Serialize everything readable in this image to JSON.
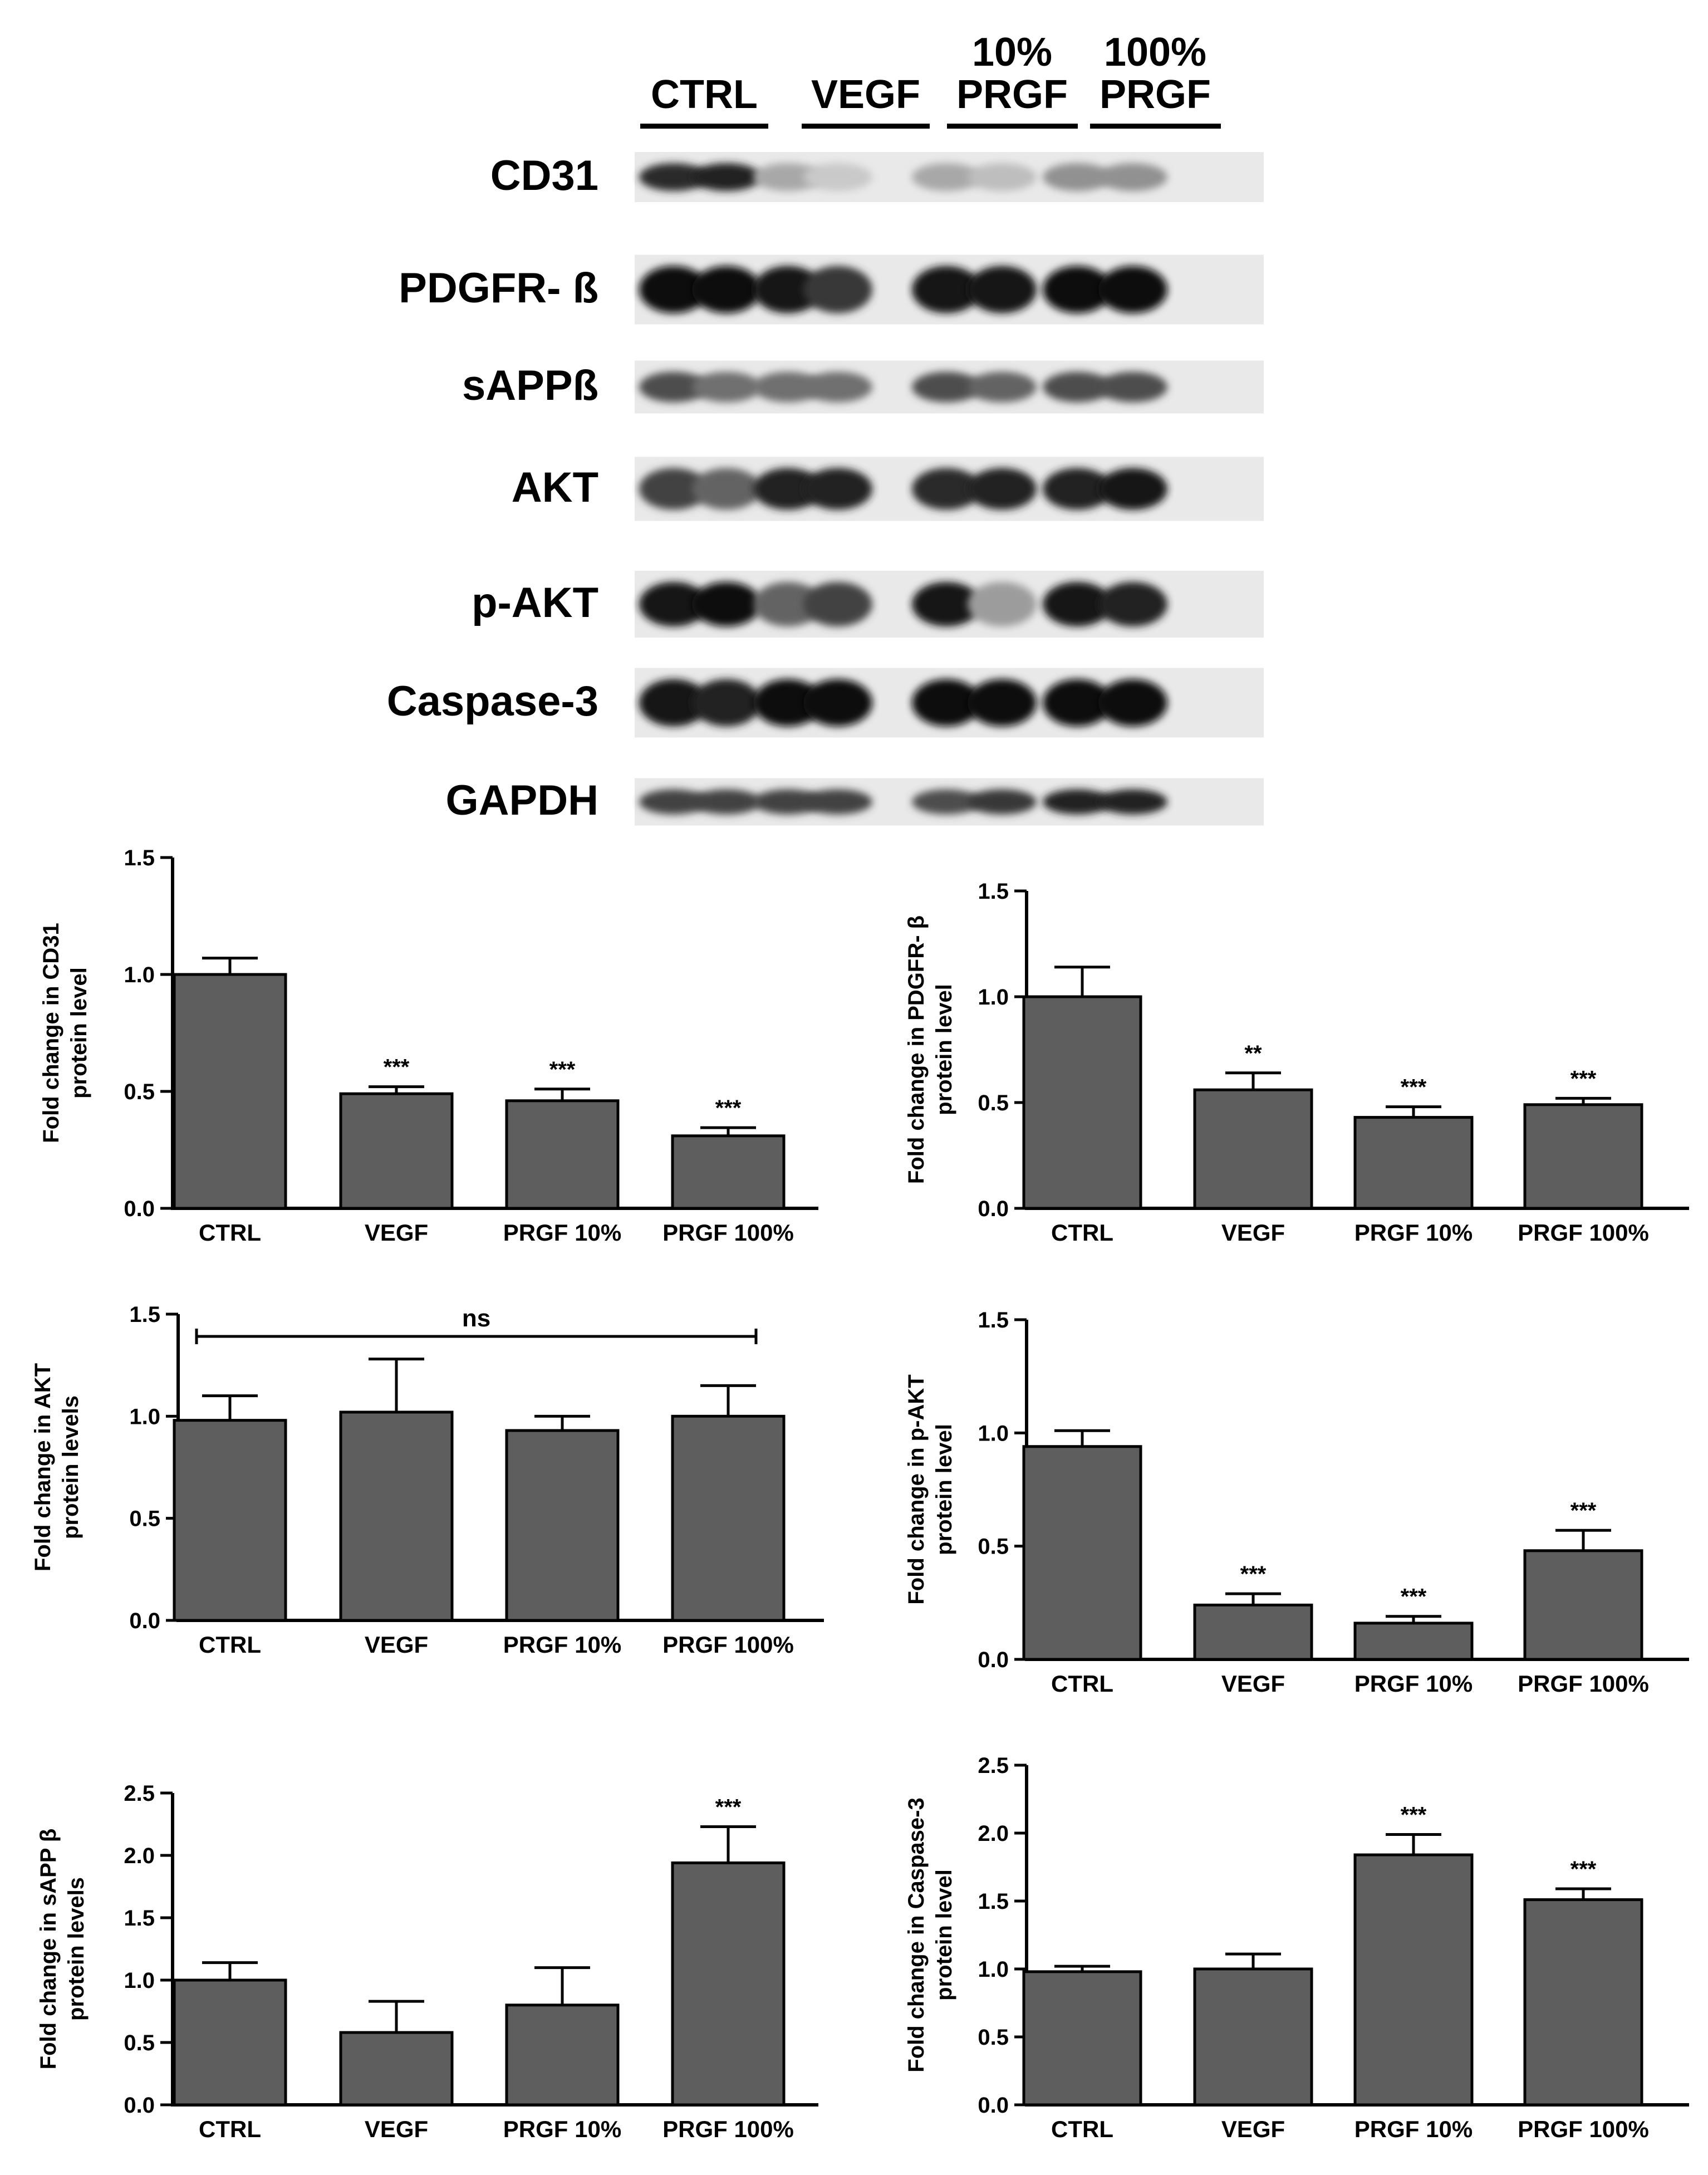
{
  "blot": {
    "groups": [
      "CTRL",
      "VEGF",
      "10%\nPRGF",
      "100%\nPRGF"
    ],
    "rows": [
      "CD31",
      "PDGFR- ß",
      "sAPPß",
      "AKT",
      "p-AKT",
      "Caspase-3",
      "GAPDH"
    ]
  },
  "chart_data": [
    {
      "type": "bar",
      "categories": [
        "CTRL",
        "VEGF",
        "PRGF 10%",
        "PRGF 100%"
      ],
      "values": [
        1.0,
        0.49,
        0.46,
        0.31
      ],
      "errors": [
        0.07,
        0.03,
        0.05,
        0.035
      ],
      "annotations": [
        "",
        "***",
        "***",
        "***"
      ],
      "ylabel": "Fold change in CD31\nprotein level",
      "ylim": [
        0,
        1.5
      ],
      "yticks": [
        "0.0",
        "0.5",
        "1.0",
        "1.5"
      ]
    },
    {
      "type": "bar",
      "categories": [
        "CTRL",
        "VEGF",
        "PRGF 10%",
        "PRGF 100%"
      ],
      "values": [
        1.0,
        0.56,
        0.43,
        0.49
      ],
      "errors": [
        0.14,
        0.08,
        0.05,
        0.03
      ],
      "annotations": [
        "",
        "**",
        "***",
        "***"
      ],
      "ylabel": "Fold change in PDGFR- β\nprotein level",
      "ylim": [
        0,
        1.5
      ],
      "yticks": [
        "0.0",
        "0.5",
        "1.0",
        "1.5"
      ]
    },
    {
      "type": "bar",
      "categories": [
        "CTRL",
        "VEGF",
        "PRGF 10%",
        "PRGF 100%"
      ],
      "values": [
        0.98,
        1.02,
        0.93,
        1.0
      ],
      "errors": [
        0.12,
        0.26,
        0.07,
        0.15
      ],
      "annotations": [
        "",
        "",
        "",
        ""
      ],
      "bracket_label": "ns",
      "ylabel": "Fold change in AKT\nprotein levels",
      "ylim": [
        0,
        1.5
      ],
      "yticks": [
        "0.0",
        "0.5",
        "1.0",
        "1.5"
      ]
    },
    {
      "type": "bar",
      "categories": [
        "CTRL",
        "VEGF",
        "PRGF 10%",
        "PRGF 100%"
      ],
      "values": [
        0.94,
        0.24,
        0.16,
        0.48
      ],
      "errors": [
        0.07,
        0.05,
        0.03,
        0.09
      ],
      "annotations": [
        "",
        "***",
        "***",
        "***"
      ],
      "ylabel": "Fold change in p-AKT\nprotein level",
      "ylim": [
        0,
        1.5
      ],
      "yticks": [
        "0.0",
        "0.5",
        "1.0",
        "1.5"
      ]
    },
    {
      "type": "bar",
      "categories": [
        "CTRL",
        "VEGF",
        "PRGF 10%",
        "PRGF 100%"
      ],
      "values": [
        1.0,
        0.58,
        0.8,
        1.94
      ],
      "errors": [
        0.14,
        0.25,
        0.3,
        0.29
      ],
      "annotations": [
        "",
        "",
        "",
        "***"
      ],
      "ylabel": "Fold change in sAPP β\nprotein levels",
      "ylim": [
        0,
        2.5
      ],
      "yticks": [
        "0.0",
        "0.5",
        "1.0",
        "1.5",
        "2.0",
        "2.5"
      ]
    },
    {
      "type": "bar",
      "categories": [
        "CTRL",
        "VEGF",
        "PRGF 10%",
        "PRGF 100%"
      ],
      "values": [
        0.98,
        1.0,
        1.84,
        1.51
      ],
      "errors": [
        0.04,
        0.11,
        0.15,
        0.08
      ],
      "annotations": [
        "",
        "",
        "***",
        "***"
      ],
      "ylabel": "Fold change in Caspase-3\nprotein level",
      "ylim": [
        0,
        2.5
      ],
      "yticks": [
        "0.0",
        "0.5",
        "1.0",
        "1.5",
        "2.0",
        "2.5"
      ]
    }
  ],
  "colors": {
    "bar": "#5e5e5e",
    "ink": "#000000"
  }
}
